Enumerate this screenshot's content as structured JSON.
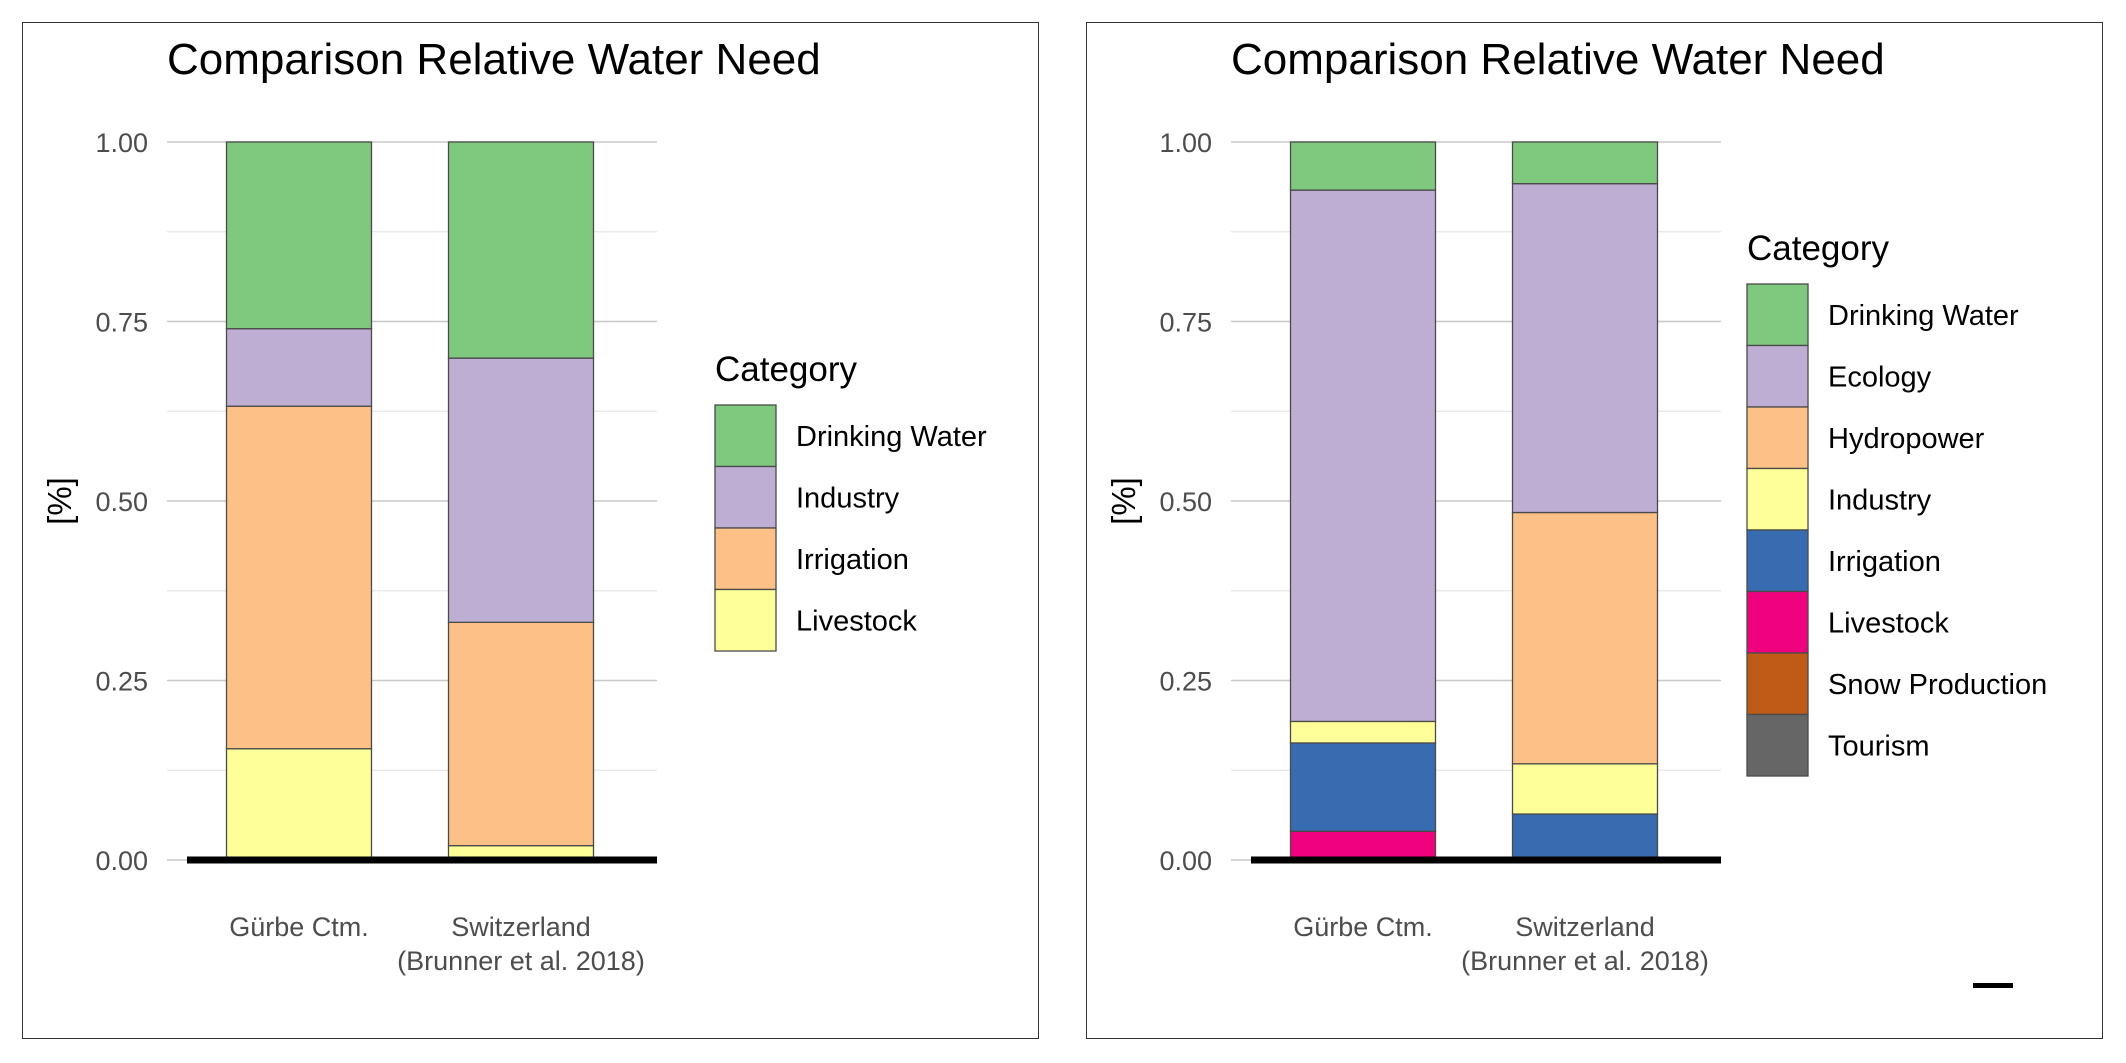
{
  "chart_data": [
    {
      "type": "bar",
      "stacked": true,
      "title": "Comparison Relative Water Need",
      "ylabel": "[%]",
      "xlabel": "",
      "ylim": [
        0,
        1
      ],
      "yticks": [
        "0.00",
        "0.25",
        "0.50",
        "0.75",
        "1.00"
      ],
      "categories": [
        [
          "Gürbe Ctm."
        ],
        [
          "Switzerland",
          "(Brunner et al. 2018)"
        ]
      ],
      "legend_title": "Category",
      "legend_position": "right",
      "grid": true,
      "series": [
        {
          "name": "Livestock",
          "color": "#FFFF99",
          "values": [
            0.155,
            0.02
          ]
        },
        {
          "name": "Irrigation",
          "color": "#FDC086",
          "values": [
            0.477,
            0.311
          ]
        },
        {
          "name": "Industry",
          "color": "#BEAED4",
          "values": [
            0.108,
            0.368
          ]
        },
        {
          "name": "Drinking Water",
          "color": "#7FC97F",
          "values": [
            0.26,
            0.301
          ]
        }
      ],
      "legend_order": [
        "Drinking Water",
        "Industry",
        "Irrigation",
        "Livestock"
      ]
    },
    {
      "type": "bar",
      "stacked": true,
      "title": "Comparison Relative Water Need",
      "ylabel": "[%]",
      "xlabel": "",
      "ylim": [
        0,
        1
      ],
      "yticks": [
        "0.00",
        "0.25",
        "0.50",
        "0.75",
        "1.00"
      ],
      "categories": [
        [
          "Gürbe Ctm."
        ],
        [
          "Switzerland",
          "(Brunner et al. 2018)"
        ]
      ],
      "legend_title": "Category",
      "legend_position": "right",
      "grid": true,
      "series": [
        {
          "name": "Tourism",
          "color": "#666666",
          "values": [
            0.0,
            0.0
          ]
        },
        {
          "name": "Snow Production",
          "color": "#BF5B17",
          "values": [
            0.0,
            0.0
          ]
        },
        {
          "name": "Livestock",
          "color": "#F0027F",
          "values": [
            0.04,
            0.0
          ]
        },
        {
          "name": "Irrigation",
          "color": "#386CB0",
          "values": [
            0.123,
            0.064
          ]
        },
        {
          "name": "Industry",
          "color": "#FFFF99",
          "values": [
            0.03,
            0.07
          ]
        },
        {
          "name": "Hydropower",
          "color": "#FDC086",
          "values": [
            0.0,
            0.35
          ]
        },
        {
          "name": "Ecology",
          "color": "#BEAED4",
          "values": [
            0.74,
            0.458
          ]
        },
        {
          "name": "Drinking Water",
          "color": "#7FC97F",
          "values": [
            0.067,
            0.058
          ]
        }
      ],
      "legend_order": [
        "Drinking Water",
        "Ecology",
        "Hydropower",
        "Industry",
        "Irrigation",
        "Livestock",
        "Snow Production",
        "Tourism"
      ]
    }
  ]
}
